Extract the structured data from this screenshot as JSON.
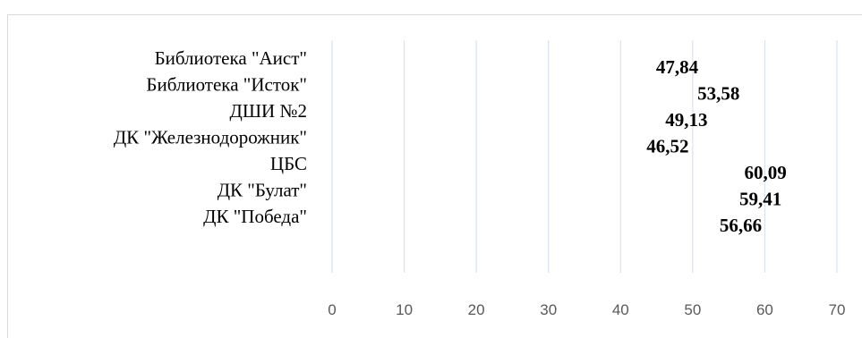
{
  "chart_data": {
    "type": "bar",
    "orientation": "horizontal",
    "title": "",
    "xlabel": "",
    "ylabel": "",
    "categories": [
      "Библиотека \"Аист\"",
      "Библиотека \"Исток\"",
      "ДШИ №2",
      "ДК \"Железнодорожник\"",
      "ЦБС",
      "ДК \"Булат\"",
      "ДК \"Победа\""
    ],
    "values": [
      47.84,
      53.58,
      49.13,
      46.52,
      60.09,
      59.41,
      56.66
    ],
    "value_labels": [
      "47,84",
      "53,58",
      "49,13",
      "46,52",
      "60,09",
      "59,41",
      "56,66"
    ],
    "xlim": [
      0,
      70
    ],
    "ticks": [
      0,
      10,
      20,
      30,
      40,
      50,
      60,
      70
    ],
    "tick_labels": [
      "0",
      "10",
      "20",
      "30",
      "40",
      "50",
      "60",
      "70"
    ],
    "grid": true,
    "legend": "none",
    "colors": {
      "grid": "#d6e3f0",
      "tick_text": "#595959",
      "label_text": "#000000"
    }
  }
}
